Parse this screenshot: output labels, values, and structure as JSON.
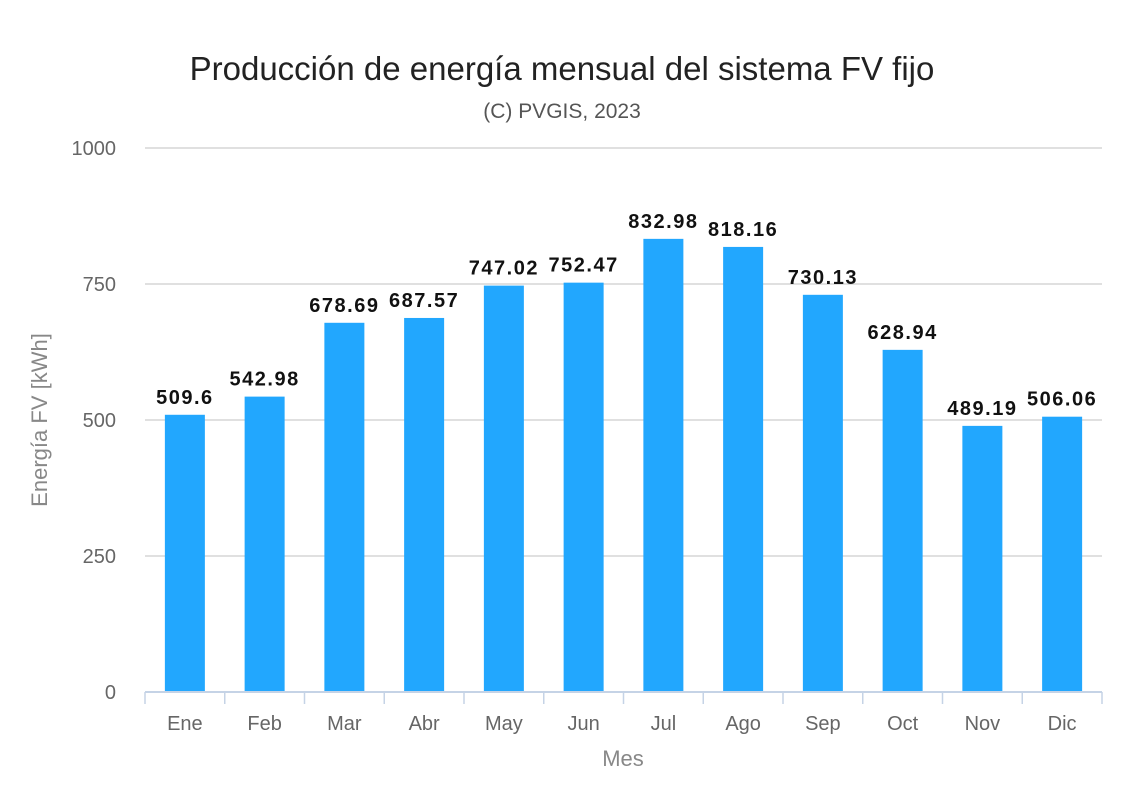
{
  "chart_data": {
    "type": "bar",
    "title": "Producción de energía mensual del sistema FV fijo",
    "subtitle": "(C) PVGIS, 2023",
    "xlabel": "Mes",
    "ylabel": "Energía FV [kWh]",
    "categories": [
      "Ene",
      "Feb",
      "Mar",
      "Abr",
      "May",
      "Jun",
      "Jul",
      "Ago",
      "Sep",
      "Oct",
      "Nov",
      "Dic"
    ],
    "values": [
      509.6,
      542.98,
      678.69,
      687.57,
      747.02,
      752.47,
      832.98,
      818.16,
      730.13,
      628.94,
      489.19,
      506.06
    ],
    "data_labels": [
      "509.6",
      "542.98",
      "678.69",
      "687.57",
      "747.02",
      "752.47",
      "832.98",
      "818.16",
      "730.13",
      "628.94",
      "489.19",
      "506.06"
    ],
    "yticks": [
      "0",
      "250",
      "500",
      "750",
      "1000"
    ],
    "ylim": [
      0,
      1000
    ],
    "grid": true,
    "legend": "none",
    "bar_color": "#22a7fe",
    "grid_color": "#d6d6d6",
    "axis_color": "#c5d3e6"
  }
}
